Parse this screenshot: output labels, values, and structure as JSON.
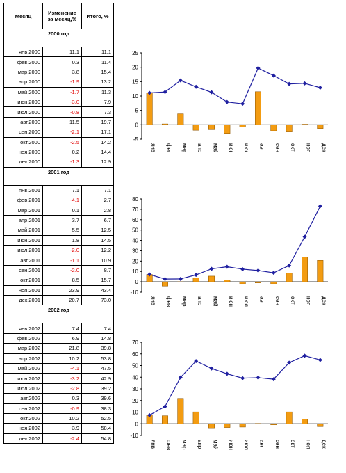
{
  "table": {
    "headers": [
      "Месяц",
      "Изменение за месяц,%",
      "Итого, %"
    ],
    "blocks": [
      {
        "year": "2000 год",
        "rows": [
          [
            "янв.2000",
            "11.1",
            "11.1"
          ],
          [
            "фев.2000",
            "0.3",
            "11.4"
          ],
          [
            "мар.2000",
            "3.8",
            "15.4"
          ],
          [
            "апр.2000",
            "-1.9",
            "13.2"
          ],
          [
            "май.2000",
            "-1.7",
            "11.3"
          ],
          [
            "июн.2000",
            "-3.0",
            "7.9"
          ],
          [
            "июл.2000",
            "-0.8",
            "7.3"
          ],
          [
            "авг.2000",
            "11.5",
            "19.7"
          ],
          [
            "сен.2000",
            "-2.1",
            "17.1"
          ],
          [
            "окт.2000",
            "-2.5",
            "14.2"
          ],
          [
            "ноя.2000",
            "0.2",
            "14.4"
          ],
          [
            "дек.2000",
            "-1.3",
            "12.9"
          ]
        ]
      },
      {
        "year": "2001 год",
        "rows": [
          [
            "янв.2001",
            "7.1",
            "7.1"
          ],
          [
            "фев.2001",
            "-4.1",
            "2.7"
          ],
          [
            "мар.2001",
            "0.1",
            "2.8"
          ],
          [
            "апр.2001",
            "3.7",
            "6.7"
          ],
          [
            "май.2001",
            "5.5",
            "12.5"
          ],
          [
            "июн.2001",
            "1.8",
            "14.5"
          ],
          [
            "июл.2001",
            "-2.0",
            "12.2"
          ],
          [
            "авг.2001",
            "-1.1",
            "10.9"
          ],
          [
            "сен.2001",
            "-2.0",
            "8.7"
          ],
          [
            "окт.2001",
            "8.5",
            "15.7"
          ],
          [
            "ноя.2001",
            "23.9",
            "43.4"
          ],
          [
            "дек.2001",
            "20.7",
            "73.0"
          ]
        ]
      },
      {
        "year": "2002 год",
        "rows": [
          [
            "янв.2002",
            "7.4",
            "7.4"
          ],
          [
            "фев.2002",
            "6.9",
            "14.8"
          ],
          [
            "мар.2002",
            "21.8",
            "39.8"
          ],
          [
            "апр.2002",
            "10.2",
            "53.8"
          ],
          [
            "май.2002",
            "-4.1",
            "47.5"
          ],
          [
            "июн.2002",
            "-3.2",
            "42.9"
          ],
          [
            "июл.2002",
            "-2.8",
            "39.2"
          ],
          [
            "авг.2002",
            "0.3",
            "39.6"
          ],
          [
            "сен.2002",
            "-0.9",
            "38.3"
          ],
          [
            "окт.2002",
            "10.2",
            "52.5"
          ],
          [
            "ноя.2002",
            "3.9",
            "58.4"
          ],
          [
            "дек.2002",
            "-2.4",
            "54.8"
          ]
        ]
      }
    ]
  },
  "colors": {
    "bar": "#f39c12",
    "bar_stroke": "#8a5200",
    "line": "#1f1fa0",
    "negative": "#e00000"
  },
  "chart_data": [
    {
      "type": "bar+line",
      "categories": [
        "янв",
        "фев",
        "мар",
        "апр",
        "май",
        "июн",
        "июл",
        "авг",
        "сен",
        "окт",
        "ноя",
        "дек"
      ],
      "bars": [
        11.1,
        0.3,
        3.8,
        -1.9,
        -1.7,
        -3.0,
        -0.8,
        11.5,
        -2.1,
        -2.5,
        0.2,
        -1.3
      ],
      "line": [
        11.1,
        11.4,
        15.4,
        13.2,
        11.3,
        7.9,
        7.3,
        19.7,
        17.1,
        14.2,
        14.4,
        12.9
      ],
      "ylim": [
        -5,
        25
      ],
      "yticks": [
        -5,
        0,
        5,
        10,
        15,
        20,
        25
      ]
    },
    {
      "type": "bar+line",
      "categories": [
        "янв",
        "фев",
        "мар",
        "апр",
        "май",
        "июн",
        "июл",
        "авг",
        "сен",
        "окт",
        "ноя",
        "дек"
      ],
      "bars": [
        7.1,
        -4.1,
        0.1,
        3.7,
        5.5,
        1.8,
        -2.0,
        -1.1,
        -2.0,
        8.5,
        23.9,
        20.7
      ],
      "line": [
        7.1,
        2.7,
        2.8,
        6.7,
        12.5,
        14.5,
        12.2,
        10.9,
        8.7,
        15.7,
        43.4,
        73.0
      ],
      "ylim": [
        -10,
        80
      ],
      "yticks": [
        -10,
        0,
        10,
        20,
        30,
        40,
        50,
        60,
        70,
        80
      ]
    },
    {
      "type": "bar+line",
      "categories": [
        "янв",
        "фев",
        "мар",
        "апр",
        "май",
        "июн",
        "июл",
        "авг",
        "сен",
        "окт",
        "ноя",
        "дек"
      ],
      "bars": [
        7.4,
        6.9,
        21.8,
        10.2,
        -4.1,
        -3.2,
        -2.8,
        0.3,
        -0.9,
        10.2,
        3.9,
        -2.4
      ],
      "line": [
        7.4,
        14.8,
        39.8,
        53.8,
        47.5,
        42.9,
        39.2,
        39.6,
        38.3,
        52.5,
        58.4,
        54.8
      ],
      "ylim": [
        -10,
        70
      ],
      "yticks": [
        -10,
        0,
        10,
        20,
        30,
        40,
        50,
        60,
        70
      ]
    }
  ]
}
